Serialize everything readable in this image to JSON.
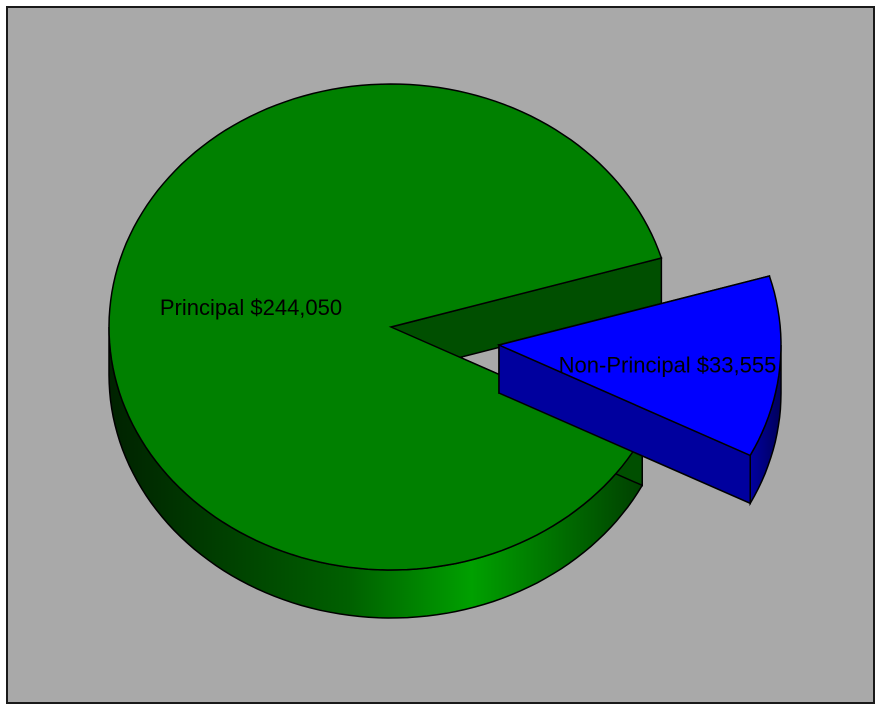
{
  "chart_data": {
    "type": "pie",
    "style": "3d-exploded",
    "slices": [
      {
        "name": "Principal",
        "value": 244050,
        "label": "Principal $244,050",
        "color": "#008000",
        "exploded": false
      },
      {
        "name": "Non-Principal",
        "value": 33555,
        "label": "Non-Principal $33,555",
        "color": "#0000ff",
        "exploded": true
      }
    ],
    "background_color": "#a9a9a9",
    "legend": "none",
    "title": ""
  }
}
